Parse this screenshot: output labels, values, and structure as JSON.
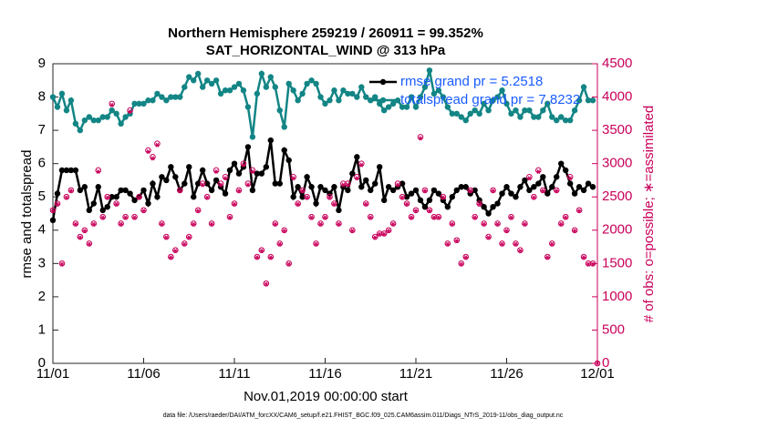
{
  "chart_data": {
    "type": "line",
    "title": "Northern Hemisphere 259219 / 260911 = 99.352%",
    "subtitle": "SAT_HORIZONTAL_WIND @ 313 hPa",
    "x_label": "Nov.01,2019 00:00:00 start",
    "y_label": "rmse and totalspread",
    "y2_label": "# of obs: o=possible; ∗=assimilated",
    "footnote": "data file: /Users/raeder/DAI/ATM_forcXX/CAM6_setup/f.e21.FHIST_BGC.f09_025.CAM6assim.011/Diags_NTrS_2019-11/obs_diag_output.nc",
    "legend_location": "upper right",
    "xlim": [
      0,
      30
    ],
    "xticks": [
      {
        "value": 0,
        "label": "11/01"
      },
      {
        "value": 5,
        "label": "11/06"
      },
      {
        "value": 10,
        "label": "11/11"
      },
      {
        "value": 15,
        "label": "11/16"
      },
      {
        "value": 20,
        "label": "11/21"
      },
      {
        "value": 25,
        "label": "11/26"
      },
      {
        "value": 30,
        "label": "12/01"
      }
    ],
    "ylim": [
      0,
      9
    ],
    "yticks": [
      0,
      1,
      2,
      3,
      4,
      5,
      6,
      7,
      8,
      9
    ],
    "y2lim": [
      0,
      4500
    ],
    "y2ticks": [
      0,
      500,
      1000,
      1500,
      2000,
      2500,
      3000,
      3500,
      4000,
      4500
    ],
    "x": [
      0,
      0.25,
      0.5,
      0.75,
      1,
      1.25,
      1.5,
      1.75,
      2,
      2.25,
      2.5,
      2.75,
      3,
      3.25,
      3.5,
      3.75,
      4,
      4.25,
      4.5,
      4.75,
      5,
      5.25,
      5.5,
      5.75,
      6,
      6.25,
      6.5,
      6.75,
      7,
      7.25,
      7.5,
      7.75,
      8,
      8.25,
      8.5,
      8.75,
      9,
      9.25,
      9.5,
      9.75,
      10,
      10.25,
      10.5,
      10.75,
      11,
      11.25,
      11.5,
      11.75,
      12,
      12.25,
      12.5,
      12.75,
      13,
      13.25,
      13.5,
      13.75,
      14,
      14.25,
      14.5,
      14.75,
      15,
      15.25,
      15.5,
      15.75,
      16,
      16.25,
      16.5,
      16.75,
      17,
      17.25,
      17.5,
      17.75,
      18,
      18.25,
      18.5,
      18.75,
      19,
      19.25,
      19.5,
      19.75,
      20,
      20.25,
      20.5,
      20.75,
      21,
      21.25,
      21.5,
      21.75,
      22,
      22.25,
      22.5,
      22.75,
      23,
      23.25,
      23.5,
      23.75,
      24,
      24.25,
      24.5,
      24.75,
      25,
      25.25,
      25.5,
      25.75,
      26,
      26.25,
      26.5,
      26.75,
      27,
      27.25,
      27.5,
      27.75,
      28,
      28.25,
      28.5,
      28.75,
      29,
      29.25,
      29.5,
      29.75,
      30
    ],
    "series": [
      {
        "name": "rmse grand pr = 5.2518",
        "color": "#000000",
        "marker": "filled",
        "values": [
          4.3,
          5.1,
          5.8,
          5.8,
          5.8,
          5.8,
          5.2,
          5.3,
          4.6,
          4.8,
          5.3,
          4.6,
          4.7,
          5.0,
          5.0,
          5.2,
          5.2,
          5.1,
          4.9,
          5.0,
          5.2,
          4.8,
          5.4,
          5.0,
          5.6,
          5.5,
          5.9,
          5.6,
          5.2,
          5.4,
          5.9,
          5.0,
          5.4,
          5.8,
          5.4,
          5.2,
          5.5,
          5.3,
          5.1,
          5.8,
          6.0,
          5.7,
          5.9,
          6.5,
          5.2,
          5.7,
          5.7,
          5.9,
          6.7,
          5.4,
          5.4,
          6.4,
          6.1,
          5.0,
          5.3,
          5.0,
          5.6,
          5.3,
          4.8,
          5.3,
          5.2,
          5.1,
          5.3,
          4.6,
          5.3,
          5.2,
          5.7,
          6.2,
          5.3,
          5.5,
          5.2,
          5.4,
          5.9,
          4.9,
          5.3,
          5.2,
          5.3,
          5.4,
          5.0,
          5.1,
          5.2,
          4.9,
          4.7,
          4.9,
          5.2,
          5.1,
          4.9,
          4.7,
          5.0,
          5.2,
          5.3,
          5.3,
          5.1,
          5.2,
          4.9,
          4.7,
          4.5,
          4.7,
          4.8,
          5.1,
          5.3,
          5.1,
          5.0,
          5.3,
          5.5,
          5.2,
          5.3,
          5.4,
          5.6,
          5.1,
          5.3,
          5.6,
          6.0,
          5.8,
          5.4,
          5.1,
          5.3,
          5.2,
          5.4,
          5.3,
          null
        ]
      },
      {
        "name": "totalspread grand pr = 7.8232",
        "color": "#138585",
        "marker": "filled",
        "values": [
          8.0,
          7.7,
          8.1,
          7.6,
          7.9,
          7.2,
          7.0,
          7.3,
          7.4,
          7.3,
          7.3,
          7.4,
          7.4,
          7.6,
          7.5,
          7.2,
          7.4,
          7.5,
          7.8,
          7.8,
          7.8,
          7.9,
          7.9,
          8.1,
          8.0,
          7.9,
          8.0,
          8.0,
          8.0,
          8.3,
          8.6,
          8.5,
          8.7,
          8.3,
          8.5,
          8.4,
          8.5,
          8.1,
          8.2,
          8.2,
          8.3,
          8.4,
          8.2,
          7.7,
          6.8,
          8.1,
          8.7,
          8.3,
          8.6,
          8.3,
          7.6,
          7.1,
          8.4,
          8.2,
          7.9,
          8.1,
          8.4,
          8.5,
          8.4,
          8.0,
          7.8,
          7.9,
          8.2,
          7.9,
          8.2,
          8.1,
          8.1,
          8.0,
          8.3,
          8.0,
          7.9,
          8.0,
          7.8,
          7.6,
          7.7,
          7.8,
          7.9,
          7.7,
          7.7,
          8.0,
          7.7,
          8.0,
          8.3,
          8.8,
          8.1,
          8.2,
          8.0,
          7.7,
          7.5,
          7.5,
          7.4,
          7.3,
          7.5,
          7.6,
          7.5,
          7.8,
          7.6,
          7.9,
          8.0,
          8.2,
          7.8,
          7.5,
          7.6,
          7.4,
          7.6,
          7.6,
          7.4,
          7.4,
          7.6,
          7.8,
          7.4,
          7.3,
          7.4,
          7.3,
          7.3,
          7.6,
          7.9,
          8.3,
          7.9,
          7.9,
          null
        ]
      },
      {
        "name": "possible",
        "color": "#c8005a",
        "marker": "circle",
        "axis": "y2",
        "values": [
          2300,
          2400,
          1500,
          2500,
          2600,
          2100,
          1900,
          2000,
          1800,
          2100,
          2900,
          2200,
          2500,
          3900,
          2400,
          2100,
          2200,
          3800,
          2200,
          2500,
          2300,
          3200,
          3100,
          3300,
          2100,
          1900,
          1600,
          1700,
          2600,
          1800,
          1900,
          2100,
          2300,
          2700,
          2500,
          2100,
          2900,
          2700,
          2800,
          2200,
          2400,
          2600,
          3000,
          2700,
          2900,
          1600,
          1700,
          1200,
          1600,
          2100,
          1800,
          2000,
          1500,
          2800,
          2400,
          2600,
          2500,
          2200,
          1800,
          2100,
          2200,
          2500,
          2400,
          2100,
          2700,
          2700,
          2000,
          2800,
          3000,
          2400,
          2200,
          1900,
          1950,
          1950,
          2000,
          2100,
          2700,
          2500,
          2400,
          2200,
          2300,
          3400,
          2600,
          2300,
          2200,
          2200,
          2500,
          1800,
          2100,
          1850,
          1500,
          1600,
          2600,
          2200,
          2400,
          2100,
          1900,
          2600,
          2100,
          1800,
          2000,
          2200,
          1800,
          1700,
          2100,
          2800,
          2500,
          2900,
          2600,
          1600,
          1800,
          2600,
          2100,
          2200,
          2800,
          2000,
          2300,
          1600,
          1500,
          1500,
          0
        ]
      },
      {
        "name": "assimilated",
        "color": "#c8005a",
        "marker": "asterisk",
        "axis": "y2",
        "values": [
          2290,
          2390,
          1490,
          2490,
          2590,
          2090,
          1890,
          1990,
          1790,
          2090,
          2880,
          2190,
          2490,
          3880,
          2390,
          2090,
          2190,
          3780,
          2190,
          2490,
          2290,
          3180,
          3080,
          3280,
          2090,
          1890,
          1590,
          1690,
          2590,
          1790,
          1890,
          2090,
          2290,
          2680,
          2490,
          2090,
          2880,
          2680,
          2780,
          2190,
          2390,
          2590,
          2980,
          2680,
          2880,
          1590,
          1690,
          1190,
          1590,
          2090,
          1790,
          1990,
          1490,
          2780,
          2390,
          2590,
          2490,
          2190,
          1790,
          2090,
          2190,
          2490,
          2390,
          2090,
          2680,
          2680,
          1990,
          2780,
          2980,
          2390,
          2190,
          1890,
          1940,
          1940,
          1990,
          2090,
          2680,
          2490,
          2390,
          2190,
          2290,
          3380,
          2590,
          2290,
          2190,
          2190,
          2490,
          1790,
          2090,
          1840,
          1490,
          1590,
          2590,
          2190,
          2390,
          2090,
          1890,
          2590,
          2090,
          1790,
          1990,
          2190,
          1790,
          1690,
          2090,
          2780,
          2490,
          2880,
          2590,
          1590,
          1790,
          2590,
          2090,
          2190,
          2780,
          1990,
          2290,
          1590,
          1490,
          1490,
          0
        ]
      }
    ]
  }
}
